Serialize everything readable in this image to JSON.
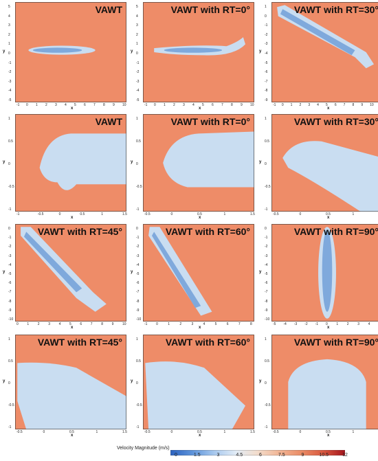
{
  "panels": [
    {
      "title": "VAWT",
      "xlabel": "x",
      "ylabel": "y",
      "xticks": [
        "-1",
        "0",
        "1",
        "2",
        "3",
        "4",
        "5",
        "6",
        "7",
        "8",
        "9",
        "10"
      ],
      "yticks": [
        "5",
        "4",
        "3",
        "2",
        "1",
        "0",
        "-1",
        "-2",
        "-3",
        "-4",
        "-5"
      ],
      "view": "wake",
      "wake": "horizontal-short"
    },
    {
      "title": "VAWT with RT=0°",
      "xlabel": "x",
      "ylabel": "y",
      "xticks": [
        "-1",
        "0",
        "1",
        "2",
        "3",
        "4",
        "5",
        "6",
        "7",
        "8",
        "9",
        "10"
      ],
      "yticks": [
        "5",
        "4",
        "3",
        "2",
        "1",
        "0",
        "-1",
        "-2",
        "-3",
        "-4",
        "-5"
      ],
      "view": "wake",
      "wake": "horizontal-long"
    },
    {
      "title": "VAWT with RT=30°",
      "xlabel": "x",
      "ylabel": "y",
      "xticks": [
        "-1",
        "0",
        "1",
        "2",
        "3",
        "4",
        "5",
        "6",
        "7",
        "8",
        "9",
        "10",
        "11"
      ],
      "yticks": [
        "1",
        "0",
        "-1",
        "-2",
        "-3",
        "-4",
        "-5",
        "-6",
        "-7",
        "-8",
        "-9"
      ],
      "view": "wake",
      "wake": "diag30"
    },
    {
      "title": "VAWT",
      "xlabel": "x",
      "ylabel": "y",
      "xticks": [
        "-1",
        "-0.5",
        "0",
        "0.5",
        "1",
        "1.5"
      ],
      "yticks": [
        "1",
        "0.5",
        "0",
        "-0.5",
        "-1"
      ],
      "view": "near",
      "wake": "near0"
    },
    {
      "title": "VAWT with RT=0°",
      "xlabel": "x",
      "ylabel": "y",
      "xticks": [
        "-0.5",
        "0",
        "0.5",
        "1",
        "1.5"
      ],
      "yticks": [
        "1",
        "0.5",
        "0",
        "-0.5",
        "-1"
      ],
      "view": "near",
      "wake": "nearRT0"
    },
    {
      "title": "VAWT with RT=30°",
      "xlabel": "x",
      "ylabel": "y",
      "xticks": [
        "-0.5",
        "0",
        "0.5",
        "1",
        "1.5"
      ],
      "yticks": [
        "1",
        "0.5",
        "0",
        "-0.5",
        "-1"
      ],
      "view": "near",
      "wake": "near30"
    },
    {
      "title": "VAWT with RT=45°",
      "xlabel": "x",
      "ylabel": "y",
      "xticks": [
        "0",
        "1",
        "2",
        "3",
        "4",
        "5",
        "6",
        "7",
        "8",
        "9",
        "10"
      ],
      "yticks": [
        "0",
        "-1",
        "-2",
        "-3",
        "-4",
        "-5",
        "-6",
        "-7",
        "-8",
        "-9",
        "-10"
      ],
      "view": "wake",
      "wake": "diag45"
    },
    {
      "title": "VAWT with RT=60°",
      "xlabel": "x",
      "ylabel": "y",
      "xticks": [
        "-1",
        "0",
        "1",
        "2",
        "3",
        "4",
        "5",
        "6",
        "7",
        "8"
      ],
      "yticks": [
        "0",
        "-1",
        "-2",
        "-3",
        "-4",
        "-5",
        "-6",
        "-7",
        "-8",
        "-9",
        "-10"
      ],
      "view": "wake",
      "wake": "diag60"
    },
    {
      "title": "VAWT with RT=90°",
      "xlabel": "x",
      "ylabel": "y",
      "xticks": [
        "-5",
        "-4",
        "-3",
        "-2",
        "-1",
        "0",
        "1",
        "2",
        "3",
        "4",
        "5"
      ],
      "yticks": [
        "0",
        "-1",
        "-2",
        "-3",
        "-4",
        "-5",
        "-6",
        "-7",
        "-8",
        "-9",
        "-10"
      ],
      "view": "wake",
      "wake": "vert90"
    },
    {
      "title": "VAWT with RT=45°",
      "xlabel": "x",
      "ylabel": "y",
      "xticks": [
        "-0.5",
        "0",
        "0.5",
        "1",
        "1.5"
      ],
      "yticks": [
        "1",
        "0.5",
        "0",
        "-0.5",
        "-1"
      ],
      "view": "near",
      "wake": "near45"
    },
    {
      "title": "VAWT with RT=60°",
      "xlabel": "x",
      "ylabel": "y",
      "xticks": [
        "-0.5",
        "0",
        "0.5",
        "1",
        "1.5"
      ],
      "yticks": [
        "1",
        "0.5",
        "0",
        "-0.5",
        "-1"
      ],
      "view": "near",
      "wake": "near60"
    },
    {
      "title": "VAWT with RT=90°",
      "xlabel": "x",
      "ylabel": "y",
      "xticks": [
        "-0.5",
        "0",
        "0.5",
        "1",
        "1.5"
      ],
      "yticks": [
        "1",
        "0.5",
        "0",
        "-0.5",
        "-1"
      ],
      "view": "near",
      "wake": "near90"
    }
  ],
  "colorbar": {
    "title": "Velocity Magnitude (m/s)",
    "ticks": [
      "0",
      "1.5",
      "3",
      "4.5",
      "6",
      "7.5",
      "9",
      "10.5",
      "12"
    ],
    "colors": [
      "#2c63c0",
      "#5d93da",
      "#a7c8ee",
      "#e2ecf6",
      "#f3dccb",
      "#f2b595",
      "#ea8c66",
      "#d9583f",
      "#a3141c"
    ]
  },
  "colors": {
    "freestream": "#ee8c68",
    "wake": "#c9ddf1",
    "wake_core": "#7fa9dc",
    "blade_tip": "#b01418"
  },
  "chart_data": {
    "type": "heatmap",
    "quantity": "Velocity Magnitude",
    "unit": "m/s",
    "range": [
      0,
      12
    ],
    "ticks": [
      0,
      1.5,
      3,
      4.5,
      6,
      7.5,
      9,
      10.5,
      12
    ],
    "panels": [
      "VAWT",
      "VAWT with RT=0°",
      "VAWT with RT=30°",
      "VAWT",
      "VAWT with RT=0°",
      "VAWT with RT=30°",
      "VAWT with RT=45°",
      "VAWT with RT=60°",
      "VAWT with RT=90°",
      "VAWT with RT=45°",
      "VAWT with RT=60°",
      "VAWT with RT=90°"
    ]
  }
}
